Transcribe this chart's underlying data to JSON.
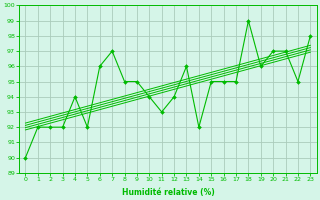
{
  "x": [
    0,
    1,
    2,
    3,
    4,
    5,
    6,
    7,
    8,
    9,
    10,
    11,
    12,
    13,
    14,
    15,
    16,
    17,
    18,
    19,
    20,
    21,
    22,
    23
  ],
  "y": [
    90,
    92,
    92,
    92,
    94,
    92,
    96,
    97,
    95,
    95,
    94,
    93,
    94,
    96,
    92,
    95,
    95,
    95,
    99,
    96,
    97,
    97,
    95,
    98
  ],
  "line_color": "#00bb00",
  "bg_color": "#d5f5e8",
  "grid_color": "#aaccbb",
  "xlabel": "Humidité relative (%)",
  "ylim": [
    89,
    100
  ],
  "xlim": [
    -0.5,
    23.5
  ],
  "yticks": [
    89,
    90,
    91,
    92,
    93,
    94,
    95,
    96,
    97,
    98,
    99,
    100
  ],
  "xticks": [
    0,
    1,
    2,
    3,
    4,
    5,
    6,
    7,
    8,
    9,
    10,
    11,
    12,
    13,
    14,
    15,
    16,
    17,
    18,
    19,
    20,
    21,
    22,
    23
  ],
  "reg_offsets": [
    -0.25,
    -0.1,
    0.05,
    0.2
  ]
}
